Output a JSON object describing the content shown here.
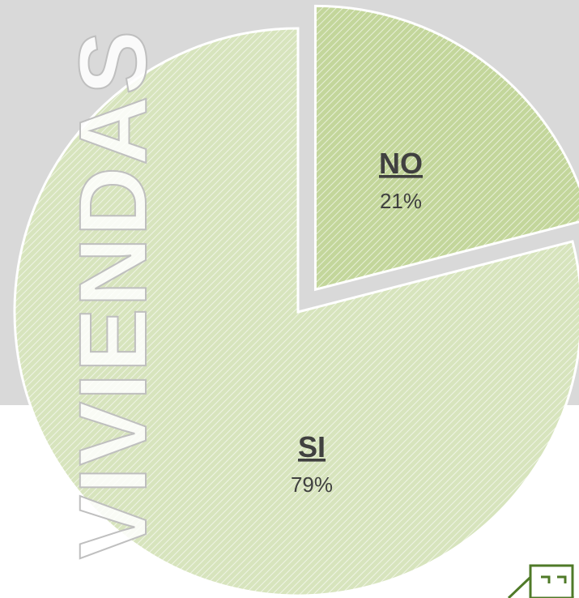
{
  "chart_data": {
    "type": "pie",
    "title": "VIVIENDAS",
    "categories": [
      "NO",
      "SI"
    ],
    "values": [
      21,
      79
    ],
    "value_labels": [
      "21%",
      "79%"
    ],
    "colors": [
      "#c3d69b",
      "#d7e4bd"
    ]
  }
}
